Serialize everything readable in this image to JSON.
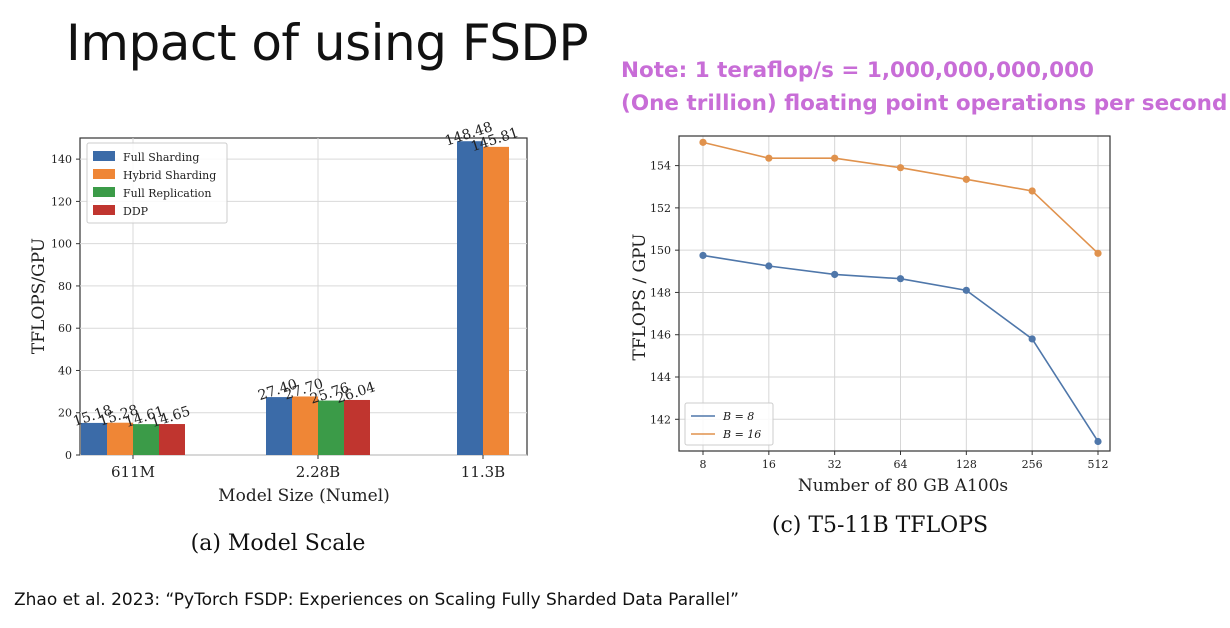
{
  "slide": {
    "title": "Impact of using FSDP",
    "note_line1": "Note: 1 teraflop/s = 1,000,000,000,000",
    "note_line2": "(One trillion) floating point operations per second",
    "note_color": "#c86dd7",
    "citation": "Zhao et al. 2023: “PyTorch FSDP: Experiences on Scaling Fully Sharded Data Parallel”"
  },
  "chart_data": [
    {
      "type": "bar",
      "caption": "(a) Model Scale",
      "xlabel": "Model Size (Numel)",
      "ylabel": "TFLOPS/GPU",
      "ylim": [
        0,
        150
      ],
      "yticks": [
        0,
        20,
        40,
        60,
        80,
        100,
        120,
        140
      ],
      "grid": true,
      "legend_position": "top-left",
      "categories": [
        "611M",
        "2.28B",
        "11.3B"
      ],
      "series": [
        {
          "name": "Full Sharding",
          "color": "#3b6ba8",
          "values": [
            15.18,
            27.4,
            148.48
          ],
          "labels": [
            "15.18",
            "27.40",
            "148.48"
          ]
        },
        {
          "name": "Hybrid Sharding",
          "color": "#ef8636",
          "values": [
            15.28,
            27.7,
            145.81
          ],
          "labels": [
            "15.28",
            "27.70",
            "145.81"
          ]
        },
        {
          "name": "Full Replication",
          "color": "#3b9b48",
          "values": [
            14.61,
            25.76,
            null
          ],
          "labels": [
            "14.61",
            "25.76",
            null
          ]
        },
        {
          "name": "DDP",
          "color": "#c0352f",
          "values": [
            14.65,
            26.04,
            null
          ],
          "labels": [
            "14.65",
            "26.04",
            null
          ]
        }
      ]
    },
    {
      "type": "line",
      "caption": "(c) T5-11B TFLOPS",
      "xlabel": "Number of 80 GB A100s",
      "ylabel": "TFLOPS / GPU",
      "x": [
        "8",
        "16",
        "32",
        "64",
        "128",
        "256",
        "512"
      ],
      "ylim": [
        140.5,
        155.4
      ],
      "yticks": [
        142,
        144,
        146,
        148,
        150,
        152,
        154
      ],
      "grid": true,
      "legend_position": "bottom-left",
      "series": [
        {
          "name": "B = 8",
          "color": "#4f77aa",
          "values": [
            149.75,
            149.25,
            148.85,
            148.65,
            148.1,
            145.8,
            140.95
          ]
        },
        {
          "name": "B = 16",
          "color": "#e0924d",
          "values": [
            155.1,
            154.35,
            154.35,
            153.9,
            153.35,
            152.8,
            149.85
          ]
        }
      ]
    }
  ]
}
